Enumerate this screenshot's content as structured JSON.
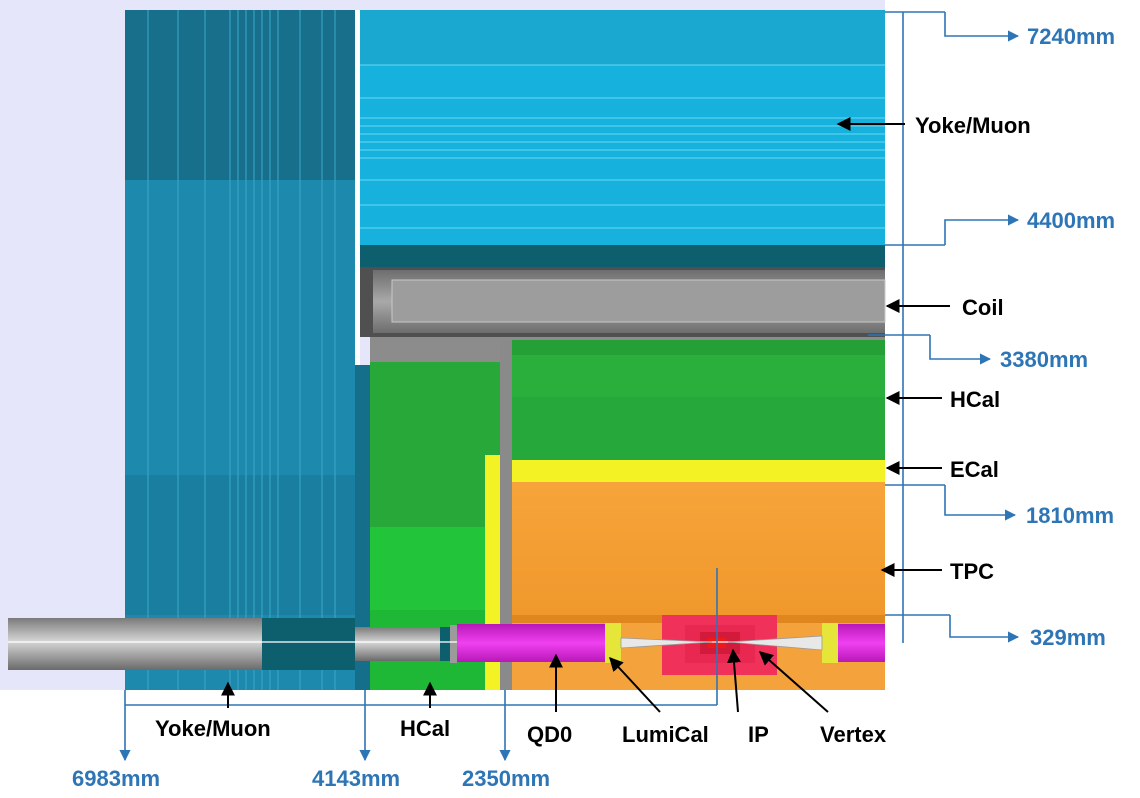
{
  "labels": {
    "yoke_muon_right": "Yoke/Muon",
    "coil": "Coil",
    "hcal_right": "HCal",
    "ecal": "ECal",
    "tpc": "TPC",
    "yoke_muon_bottom": "Yoke/Muon",
    "hcal_bottom": "HCal",
    "qd0": "QD0",
    "lumical": "LumiCal",
    "ip": "IP",
    "vertex": "Vertex"
  },
  "dimensions": {
    "r_7240": "7240mm",
    "r_4400": "4400mm",
    "r_3380": "3380mm",
    "r_1810": "1810mm",
    "r_329": "329mm",
    "z_6983": "6983mm",
    "z_4143": "4143mm",
    "z_2350": "2350mm"
  },
  "colors": {
    "dimension": "#2e75b6",
    "yoke_endcap": "#1d8aad",
    "yoke_barrel": "#16b2dd",
    "coil": "#8f8f8f",
    "hcal": "#27a83a",
    "ecal": "#f2f224",
    "tpc": "#f5a232",
    "qd0": "#e61ee6",
    "ip_region": "#f0325a",
    "background": "#e6e6fa"
  }
}
